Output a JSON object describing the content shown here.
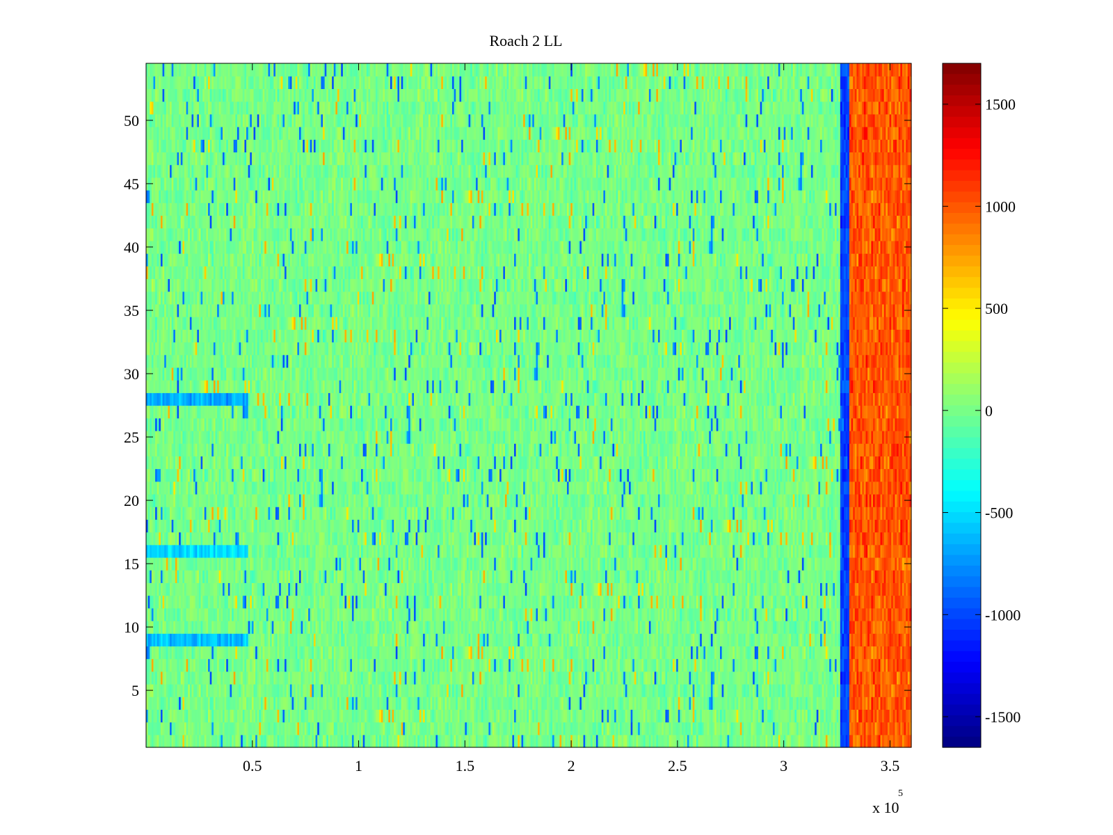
{
  "chart_data": {
    "type": "heatmap",
    "title": "Roach 2 LL",
    "xlabel": "",
    "ylabel": "",
    "x_multiplier": "x 10",
    "x_multiplier_exponent": "5",
    "xlim": [
      0,
      360000
    ],
    "ylim": [
      0.5,
      54.5
    ],
    "x_ticks": [
      50000,
      100000,
      150000,
      200000,
      250000,
      300000,
      350000
    ],
    "x_tick_labels": [
      "0.5",
      "1",
      "1.5",
      "2",
      "2.5",
      "3",
      "3.5"
    ],
    "y_ticks": [
      5,
      10,
      15,
      20,
      25,
      30,
      35,
      40,
      45,
      50
    ],
    "y_tick_labels": [
      "5",
      "10",
      "15",
      "20",
      "25",
      "30",
      "35",
      "40",
      "45",
      "50"
    ],
    "rows": 54,
    "colorbar": {
      "colormap": "jet",
      "clim": [
        -1650,
        1700
      ],
      "ticks": [
        -1500,
        -1000,
        -500,
        0,
        500,
        1000,
        1500
      ],
      "tick_labels": [
        "-1500",
        "-1000",
        "-500",
        "0",
        "500",
        "1000",
        "1500"
      ]
    },
    "regions": [
      {
        "x_range": [
          0,
          327000
        ],
        "description": "noise around baseline",
        "typical_value": 0
      },
      {
        "x_range": [
          327000,
          331000
        ],
        "description": "narrow negative band",
        "typical_value": -1000
      },
      {
        "x_range": [
          331000,
          360000
        ],
        "description": "high positive band",
        "typical_value": 1000
      }
    ],
    "row_anomalies": [
      {
        "row": 28,
        "x_range": [
          0,
          48000
        ],
        "typical_value": -650
      },
      {
        "row": 16,
        "x_range": [
          0,
          48000
        ],
        "typical_value": -500
      },
      {
        "row": 9,
        "x_range": [
          0,
          48000
        ],
        "typical_value": -600
      }
    ],
    "grid": false,
    "legend": "colorbar-right"
  }
}
